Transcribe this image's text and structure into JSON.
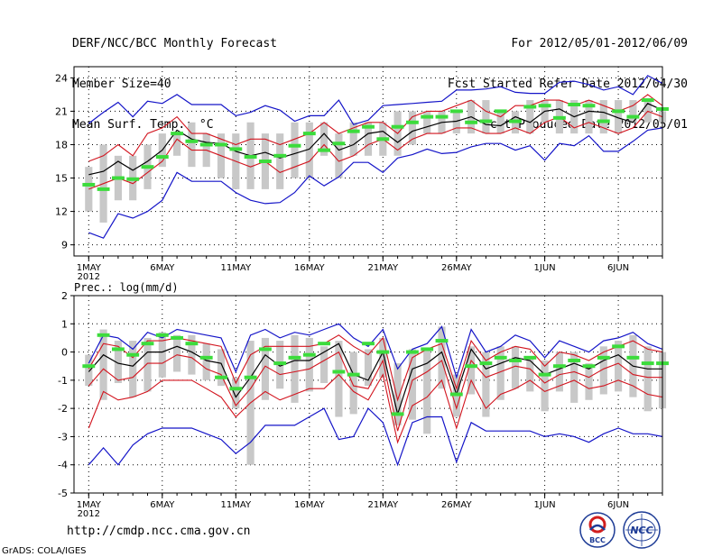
{
  "header": {
    "left": [
      "DERF/NCC/BCC Monthly Forecast",
      "Member Size=40",
      "Mean Surf. Temp.: °C"
    ],
    "right": [
      "For 2012/05/01-2012/06/09",
      "Fcst Started Refer Date 2012/04/30",
      "Fcst Produced Date 2012/05/01"
    ]
  },
  "footer": {
    "url": "http://cmdp.ncc.cma.gov.cn",
    "grads": "GrADS: COLA/IGES",
    "logo_bcc": "BCC",
    "logo_ncc": "NCC"
  },
  "colors": {
    "envelope": "#1414c8",
    "spread": "#d2141e",
    "mean": "#000000",
    "box": "#c8c8c8",
    "marker": "#3cdc3c"
  },
  "chart_data": [
    {
      "type": "line",
      "title": "Mean Surf. Temp.: °C",
      "ylim": [
        8,
        25
      ],
      "yticks": [
        9,
        12,
        15,
        18,
        21,
        24
      ],
      "xlim": [
        0,
        40
      ],
      "xticks": [
        {
          "day": 1,
          "label": "1MAY",
          "sub": "2012"
        },
        {
          "day": 6,
          "label": "6MAY"
        },
        {
          "day": 11,
          "label": "11MAY"
        },
        {
          "day": 16,
          "label": "16MAY"
        },
        {
          "day": 21,
          "label": "21MAY"
        },
        {
          "day": 26,
          "label": "26MAY"
        },
        {
          "day": 32,
          "label": "1JUN"
        },
        {
          "day": 37,
          "label": "6JUN"
        }
      ],
      "x": [
        1,
        2,
        3,
        4,
        5,
        6,
        7,
        8,
        9,
        10,
        11,
        12,
        13,
        14,
        15,
        16,
        17,
        18,
        19,
        20,
        21,
        22,
        23,
        24,
        25,
        26,
        27,
        28,
        29,
        30,
        31,
        32,
        33,
        34,
        35,
        36,
        37,
        38,
        39,
        40
      ],
      "series": [
        {
          "name": "max",
          "values": [
            19.9,
            20.9,
            21.8,
            20.5,
            21.9,
            21.7,
            22.5,
            21.6,
            21.6,
            21.6,
            20.6,
            20.9,
            21.5,
            21.1,
            20.1,
            20.6,
            20.6,
            22.0,
            19.8,
            20.2,
            21.5,
            21.6,
            21.7,
            21.8,
            21.9,
            22.9,
            22.9,
            23.0,
            23.2,
            22.7,
            22.6,
            22.6,
            23.6,
            23.7,
            23.4,
            22.9,
            23.2,
            22.5,
            24.2,
            23.5
          ]
        },
        {
          "name": "upper",
          "values": [
            16.5,
            17.0,
            18.0,
            17.0,
            19.0,
            19.5,
            20.5,
            19.0,
            19.0,
            18.5,
            18.0,
            18.5,
            18.5,
            18.0,
            18.5,
            19.0,
            20.0,
            19.0,
            19.5,
            20.0,
            20.0,
            19.0,
            20.5,
            21.0,
            21.0,
            21.5,
            22.0,
            21.0,
            20.5,
            21.5,
            21.5,
            22.0,
            22.0,
            21.5,
            22.0,
            21.5,
            21.0,
            21.5,
            22.5,
            21.5
          ]
        },
        {
          "name": "mean",
          "values": [
            15.3,
            15.6,
            16.5,
            15.7,
            16.5,
            17.5,
            19.3,
            18.5,
            18.2,
            18.1,
            17.4,
            17.0,
            17.3,
            16.8,
            17.2,
            17.6,
            19.0,
            17.5,
            18.0,
            19.0,
            19.2,
            18.2,
            19.2,
            19.6,
            20.0,
            20.1,
            20.5,
            19.8,
            19.7,
            20.5,
            20.0,
            21.0,
            21.2,
            20.5,
            21.0,
            20.9,
            20.4,
            20.0,
            21.7,
            21.1
          ]
        },
        {
          "name": "lower",
          "values": [
            14.0,
            14.5,
            15.0,
            14.5,
            15.5,
            16.5,
            18.5,
            17.5,
            17.5,
            17.0,
            16.5,
            16.0,
            16.5,
            15.5,
            16.0,
            16.5,
            18.0,
            16.5,
            17.0,
            18.0,
            18.5,
            17.5,
            18.5,
            19.0,
            19.0,
            19.5,
            19.5,
            19.0,
            19.0,
            19.5,
            19.0,
            20.0,
            20.5,
            19.5,
            20.0,
            19.5,
            19.0,
            19.5,
            21.0,
            20.5
          ]
        },
        {
          "name": "min",
          "values": [
            10.1,
            9.6,
            11.8,
            11.4,
            12.0,
            13.0,
            15.5,
            14.7,
            14.7,
            14.7,
            13.7,
            13.0,
            12.7,
            12.8,
            13.7,
            15.2,
            14.3,
            15.1,
            16.4,
            16.4,
            15.5,
            16.8,
            17.1,
            17.6,
            17.2,
            17.3,
            17.8,
            18.1,
            18.1,
            17.5,
            17.9,
            16.6,
            18.1,
            17.9,
            18.8,
            17.4,
            17.4,
            18.3,
            19.3,
            19.5
          ]
        },
        {
          "name": "box_hi",
          "values": [
            16,
            18,
            17,
            17,
            18,
            19,
            19,
            20,
            19,
            19,
            19,
            20,
            19,
            19,
            20,
            20,
            20,
            19,
            20,
            20,
            20,
            21,
            21,
            21,
            21,
            21,
            22,
            22,
            21,
            21,
            22,
            22,
            22,
            22,
            22,
            22,
            22,
            22,
            22,
            21
          ]
        },
        {
          "name": "box_lo",
          "values": [
            12,
            11,
            13,
            13,
            14,
            16,
            17,
            16,
            16,
            15,
            14,
            14,
            14,
            14,
            15,
            15,
            17,
            15,
            17,
            17,
            17,
            17,
            18,
            19,
            19,
            19,
            19,
            19,
            19,
            19,
            19,
            20,
            19,
            19,
            19,
            19,
            19,
            20,
            20,
            20
          ]
        },
        {
          "name": "marker",
          "values": [
            14.4,
            14.0,
            15.0,
            14.9,
            16.0,
            16.9,
            19.0,
            18.3,
            18.0,
            18.0,
            17.6,
            16.9,
            16.5,
            17.0,
            17.9,
            19.0,
            17.5,
            18.1,
            19.2,
            19.6,
            18.5,
            19.6,
            20.0,
            20.5,
            20.5,
            21.0,
            20.0,
            20.1,
            21.0,
            20.1,
            21.4,
            21.5,
            20.4,
            21.6,
            21.5,
            20.1,
            21.0,
            20.5,
            22.0,
            21.2
          ]
        }
      ]
    },
    {
      "type": "line",
      "title": "Prec.: log(mm/d)",
      "ylim": [
        -5,
        2
      ],
      "yticks": [
        -5,
        -4,
        -3,
        -2,
        -1,
        0,
        1,
        2
      ],
      "xlim": [
        0,
        40
      ],
      "xticks": [
        {
          "day": 1,
          "label": "1MAY",
          "sub": "2012"
        },
        {
          "day": 6,
          "label": "6MAY"
        },
        {
          "day": 11,
          "label": "11MAY"
        },
        {
          "day": 16,
          "label": "16MAY"
        },
        {
          "day": 21,
          "label": "21MAY"
        },
        {
          "day": 26,
          "label": "26MAY"
        },
        {
          "day": 32,
          "label": "1JUN"
        },
        {
          "day": 37,
          "label": "6JUN"
        }
      ],
      "x": [
        1,
        2,
        3,
        4,
        5,
        6,
        7,
        8,
        9,
        10,
        11,
        12,
        13,
        14,
        15,
        16,
        17,
        18,
        19,
        20,
        21,
        22,
        23,
        24,
        25,
        26,
        27,
        28,
        29,
        30,
        31,
        32,
        33,
        34,
        35,
        36,
        37,
        38,
        39,
        40
      ],
      "series": [
        {
          "name": "max",
          "values": [
            -0.4,
            0.6,
            0.5,
            0.1,
            0.7,
            0.5,
            0.8,
            0.7,
            0.6,
            0.5,
            -0.7,
            0.6,
            0.8,
            0.5,
            0.7,
            0.6,
            0.8,
            1.0,
            0.5,
            0.2,
            0.8,
            -0.6,
            0.1,
            0.3,
            0.9,
            -0.9,
            0.8,
            0.0,
            0.2,
            0.6,
            0.4,
            -0.2,
            0.4,
            0.2,
            0.0,
            0.4,
            0.5,
            0.7,
            0.3,
            0.1
          ]
        },
        {
          "name": "upper",
          "values": [
            -0.6,
            0.3,
            0.2,
            -0.2,
            0.4,
            0.4,
            0.5,
            0.4,
            0.3,
            0.2,
            -1.1,
            -0.1,
            0.2,
            0.2,
            0.2,
            0.2,
            0.3,
            0.6,
            0.2,
            -0.1,
            0.5,
            -1.7,
            -0.2,
            0.1,
            0.3,
            -1.3,
            0.4,
            -0.3,
            0.0,
            0.2,
            0.1,
            -0.5,
            0.0,
            -0.1,
            -0.3,
            0.0,
            0.2,
            0.4,
            0.1,
            0.0
          ]
        },
        {
          "name": "mean",
          "values": [
            -0.7,
            -0.1,
            -0.4,
            -0.5,
            0.0,
            0.0,
            0.2,
            0.0,
            -0.3,
            -0.4,
            -1.6,
            -0.9,
            -0.1,
            -0.5,
            -0.3,
            -0.3,
            0.0,
            0.3,
            -0.8,
            -1.0,
            0.0,
            -2.2,
            -0.6,
            -0.4,
            0.0,
            -1.5,
            0.1,
            -0.6,
            -0.4,
            -0.2,
            -0.3,
            -0.8,
            -0.6,
            -0.4,
            -0.6,
            -0.3,
            -0.1,
            -0.5,
            -0.6,
            -0.6
          ]
        },
        {
          "name": "lower",
          "values": [
            -1.2,
            -0.6,
            -1.0,
            -0.9,
            -0.4,
            -0.4,
            -0.1,
            -0.2,
            -0.6,
            -0.8,
            -1.9,
            -1.3,
            -0.5,
            -0.8,
            -0.7,
            -0.6,
            -0.3,
            0.0,
            -1.2,
            -1.3,
            -0.3,
            -2.8,
            -1.0,
            -0.7,
            -0.3,
            -2.0,
            -0.3,
            -0.9,
            -0.7,
            -0.5,
            -0.6,
            -1.1,
            -0.8,
            -0.7,
            -0.9,
            -0.6,
            -0.4,
            -0.8,
            -0.9,
            -0.9
          ]
        },
        {
          "name": "lowest",
          "values": [
            -2.7,
            -1.4,
            -1.7,
            -1.6,
            -1.4,
            -1.0,
            -1.0,
            -1.0,
            -1.3,
            -1.6,
            -2.3,
            -1.8,
            -1.4,
            -1.7,
            -1.5,
            -1.3,
            -1.3,
            -0.8,
            -1.4,
            -1.7,
            -0.8,
            -3.2,
            -1.9,
            -1.6,
            -1.0,
            -2.7,
            -1.0,
            -2.0,
            -1.5,
            -1.3,
            -1.0,
            -1.4,
            -1.2,
            -1.0,
            -1.3,
            -1.2,
            -1.0,
            -1.2,
            -1.5,
            -1.6
          ]
        },
        {
          "name": "min",
          "values": [
            -4.0,
            -3.4,
            -4.0,
            -3.3,
            -2.9,
            -2.7,
            -2.7,
            -2.7,
            -2.9,
            -3.1,
            -3.6,
            -3.2,
            -2.6,
            -2.6,
            -2.6,
            -2.3,
            -2.0,
            -3.1,
            -3.0,
            -2.0,
            -2.5,
            -4.0,
            -2.5,
            -2.3,
            -2.3,
            -3.9,
            -2.5,
            -2.8,
            -2.8,
            -2.8,
            -2.8,
            -3.0,
            -2.9,
            -3.0,
            -3.2,
            -2.9,
            -2.7,
            -2.9,
            -2.9,
            -3.0
          ]
        },
        {
          "name": "box_hi",
          "values": [
            -0.1,
            0.8,
            0.4,
            0.4,
            0.5,
            0.7,
            0.6,
            0.6,
            0.3,
            0.1,
            -0.9,
            0.4,
            0.5,
            0.4,
            0.6,
            0.5,
            0.2,
            0.4,
            0.0,
            0.1,
            0.5,
            -0.4,
            0.1,
            0.1,
            0.9,
            -0.8,
            0.2,
            0.0,
            0.2,
            0.2,
            -0.2,
            -0.3,
            0.0,
            0.0,
            -0.4,
            0.2,
            0.4,
            0.6,
            0.2,
            0.0
          ]
        },
        {
          "name": "box_lo",
          "values": [
            -1.2,
            -1.7,
            -1.1,
            -1.6,
            -1.4,
            -0.9,
            -0.7,
            -0.8,
            -1.0,
            -1.2,
            -2.0,
            -4.0,
            -1.7,
            -1.3,
            -1.8,
            -1.4,
            -1.1,
            -2.3,
            -2.2,
            -1.2,
            -0.9,
            -2.6,
            -2.4,
            -2.9,
            -1.3,
            -2.3,
            -1.5,
            -2.3,
            -1.7,
            -1.3,
            -1.4,
            -2.1,
            -1.4,
            -1.8,
            -1.7,
            -1.5,
            -1.4,
            -1.6,
            -2.1,
            -2.0
          ]
        },
        {
          "name": "marker",
          "values": [
            -0.5,
            0.6,
            0.1,
            -0.1,
            0.3,
            0.6,
            0.5,
            0.3,
            -0.2,
            -0.9,
            -1.3,
            -0.9,
            0.1,
            -0.4,
            -0.2,
            -0.1,
            0.3,
            -0.7,
            -0.8,
            0.3,
            0.0,
            -2.2,
            0.0,
            0.1,
            0.4,
            -1.5,
            -0.5,
            -0.4,
            -0.2,
            -0.3,
            -0.2,
            -0.8,
            -0.5,
            -0.3,
            -0.5,
            -0.2,
            0.2,
            -0.2,
            -0.4,
            -0.4
          ]
        }
      ]
    }
  ]
}
